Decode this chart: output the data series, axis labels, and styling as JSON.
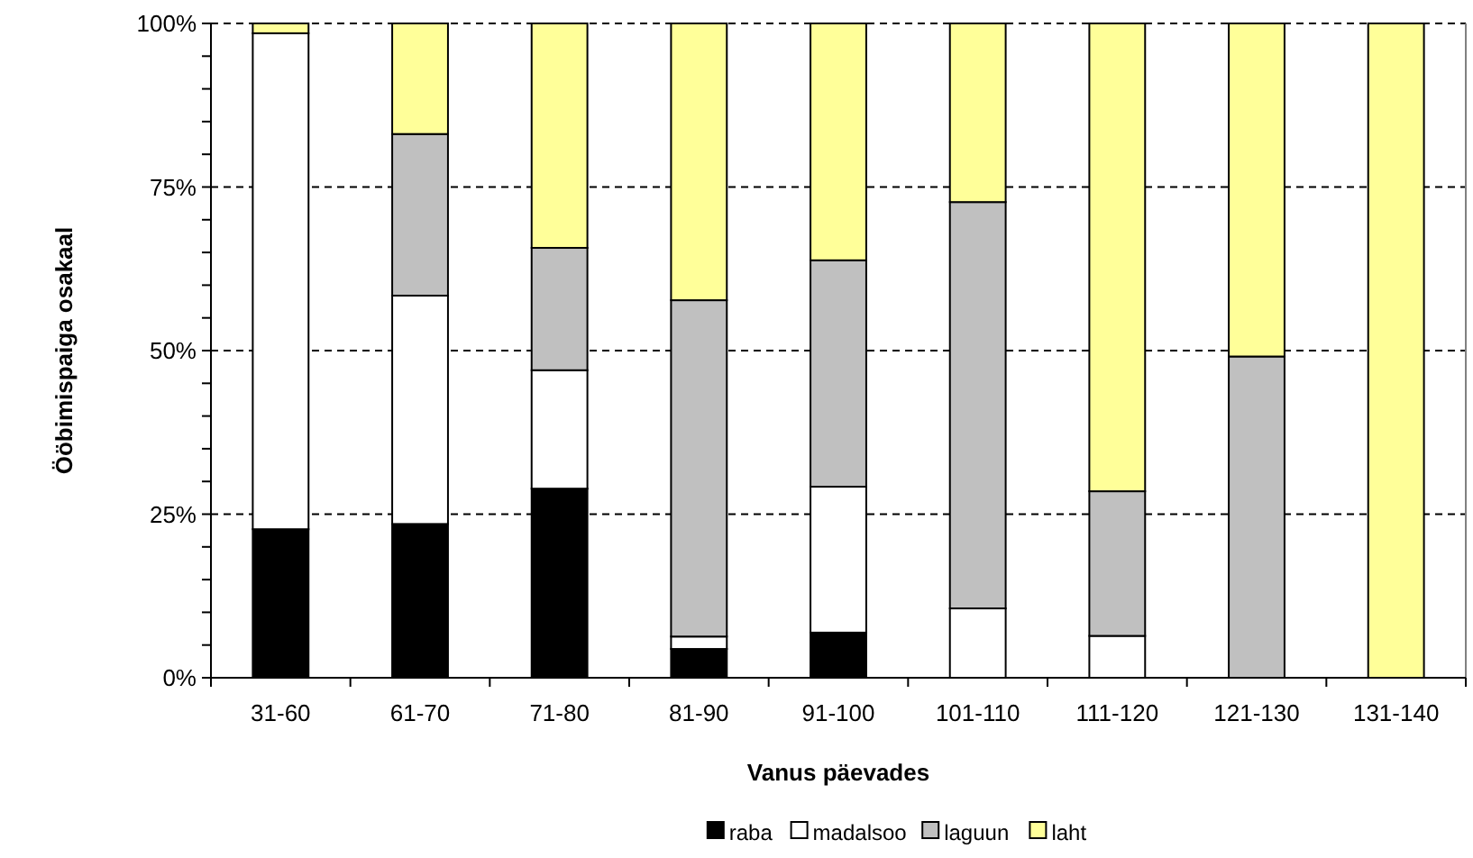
{
  "chart_data": {
    "type": "bar",
    "stacked": true,
    "xlabel": "Vanus päevades",
    "ylabel": "Ööbimispaiga osakaal",
    "categories": [
      "31-60",
      "61-70",
      "71-80",
      "81-90",
      "91-100",
      "101-110",
      "111-120",
      "121-130",
      "131-140"
    ],
    "series": [
      {
        "name": "raba",
        "color": "#000000",
        "values": [
          22.7,
          23.5,
          28.9,
          4.4,
          6.9,
          0,
          0,
          0,
          0
        ]
      },
      {
        "name": "madalsoo",
        "color": "#ffffff",
        "values": [
          75.8,
          34.9,
          18.1,
          1.9,
          22.3,
          10.6,
          6.4,
          0,
          0
        ]
      },
      {
        "name": "laguun",
        "color": "#c0c0c0",
        "values": [
          0,
          24.7,
          18.7,
          51.4,
          34.6,
          62.1,
          22.1,
          49.1,
          0
        ]
      },
      {
        "name": "laht",
        "color": "#ffff99",
        "values": [
          1.5,
          16.9,
          34.3,
          42.3,
          36.2,
          27.3,
          71.5,
          50.9,
          100
        ]
      }
    ],
    "ylim": [
      0,
      100
    ],
    "yticks": [
      {
        "value": 0,
        "label": "0%"
      },
      {
        "value": 5,
        "label": null
      },
      {
        "value": 10,
        "label": null
      },
      {
        "value": 15,
        "label": null
      },
      {
        "value": 20,
        "label": null
      },
      {
        "value": 25,
        "label": "25%"
      },
      {
        "value": 30,
        "label": null
      },
      {
        "value": 35,
        "label": null
      },
      {
        "value": 40,
        "label": null
      },
      {
        "value": 45,
        "label": null
      },
      {
        "value": 50,
        "label": "50%"
      },
      {
        "value": 55,
        "label": null
      },
      {
        "value": 60,
        "label": null
      },
      {
        "value": 65,
        "label": null
      },
      {
        "value": 70,
        "label": null
      },
      {
        "value": 75,
        "label": "75%"
      },
      {
        "value": 80,
        "label": null
      },
      {
        "value": 85,
        "label": null
      },
      {
        "value": 90,
        "label": null
      },
      {
        "value": 95,
        "label": null
      },
      {
        "value": 100,
        "label": "100%"
      }
    ],
    "grid": "y",
    "legend": "bottom"
  }
}
